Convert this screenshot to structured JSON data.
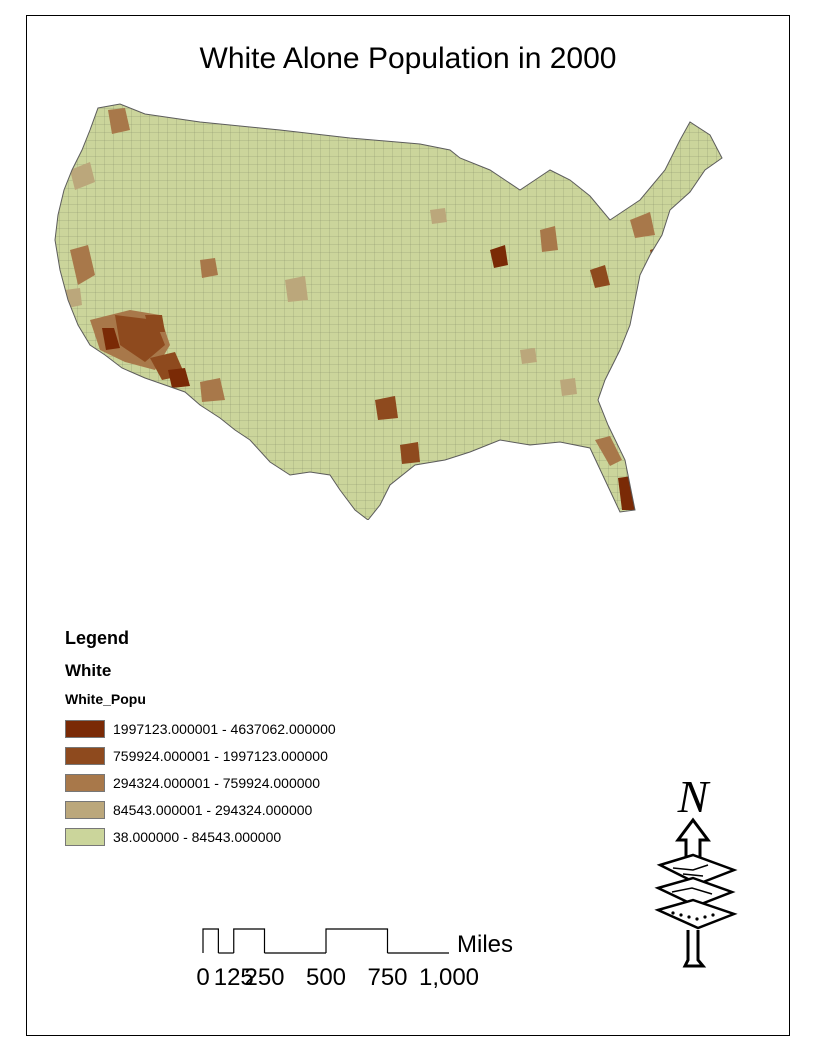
{
  "map": {
    "title": "White Alone Population in 2000",
    "base_color": "#cbd59b",
    "border_color": "#6b6b6b"
  },
  "legend": {
    "title": "Legend",
    "layer": "White",
    "field": "White_Popu",
    "classes": [
      {
        "label": "1997123.000001 - 4637062.000000",
        "color": "#7a2a06"
      },
      {
        "label": "759924.000001 - 1997123.000000",
        "color": "#8e4a1e"
      },
      {
        "label": "294324.000001 - 759924.000000",
        "color": "#a8784a"
      },
      {
        "label": "84543.000001 - 294324.000000",
        "color": "#bba77b"
      },
      {
        "label": "38.000000 - 84543.000000",
        "color": "#cbd59b"
      }
    ]
  },
  "scale_bar": {
    "unit": "Miles",
    "ticks": [
      "0",
      "125",
      "250",
      "500",
      "750",
      "1,000"
    ],
    "tick_values": [
      0,
      62.5,
      125,
      250,
      500,
      750,
      1000
    ]
  },
  "north_arrow": {
    "label": "N",
    "icon": "north-arrow-map-stack-icon"
  }
}
